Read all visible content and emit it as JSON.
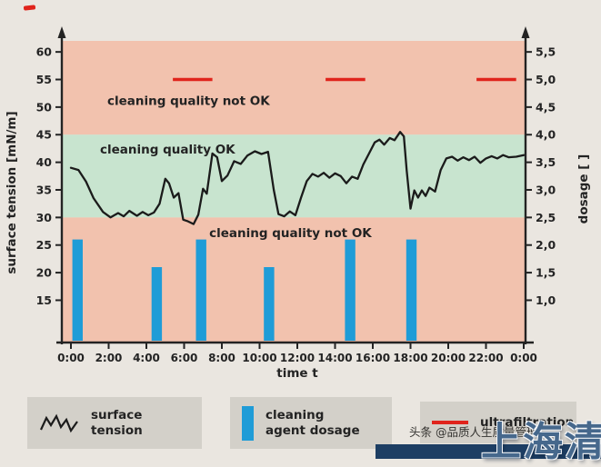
{
  "page": {
    "background": "#eae6e0"
  },
  "legend": {
    "items": [
      {
        "icon": "zigzag-line-icon",
        "label": "surface tension"
      },
      {
        "icon": "blue-bar-icon",
        "label": "cleaning agent dosage"
      },
      {
        "icon": "red-line-icon",
        "label": "ultrafiltration"
      }
    ]
  },
  "watermark": {
    "small_text": "头条 @品质人生质量管理",
    "big_text": "上海清"
  },
  "chart_data": {
    "type": "combo",
    "title": "",
    "x": {
      "label": "time t",
      "ticks": [
        "0:00",
        "2:00",
        "4:00",
        "6:00",
        "8:00",
        "10:00",
        "12:00",
        "14:00",
        "16:00",
        "18:00",
        "20:00",
        "22:00",
        "0:00"
      ],
      "tick_hours": [
        0,
        2,
        4,
        6,
        8,
        10,
        12,
        14,
        16,
        18,
        20,
        22,
        24
      ],
      "range_hours": [
        0,
        24
      ]
    },
    "y_left": {
      "label": "surface tension [mN/m]",
      "ticks": [
        60,
        55,
        50,
        45,
        40,
        35,
        30,
        25,
        20,
        15
      ],
      "range": [
        7.5,
        62
      ]
    },
    "y_right": {
      "label": "dosage [ ]",
      "ticks": [
        "5,5",
        "5,0",
        "4,5",
        "4,0",
        "3,5",
        "3,0",
        "2,5",
        "2,0",
        "1,5",
        "1,0"
      ],
      "range": [
        0.25,
        5.7
      ]
    },
    "zones": [
      {
        "label": "cleaning quality not OK",
        "from": 45,
        "to": 62,
        "color": "#f2c2ae",
        "label_pos": [
          1.93,
          50.4
        ]
      },
      {
        "label": "cleaning quality OK",
        "from": 30,
        "to": 45,
        "color": "#c8e4cf",
        "label_pos": [
          1.54,
          41.6
        ]
      },
      {
        "label": "cleaning quality not OK",
        "from": 7.5,
        "to": 30,
        "color": "#f2c2ae",
        "label_pos": [
          7.33,
          26.4
        ]
      }
    ],
    "series": [
      {
        "name": "surface tension",
        "type": "line",
        "color": "#1b1b1b",
        "points": [
          [
            0,
            39
          ],
          [
            0.4,
            38.6
          ],
          [
            0.8,
            36.5
          ],
          [
            1.2,
            33.5
          ],
          [
            1.7,
            31
          ],
          [
            2.1,
            30
          ],
          [
            2.5,
            30.8
          ],
          [
            2.8,
            30.2
          ],
          [
            3.1,
            31.2
          ],
          [
            3.5,
            30.3
          ],
          [
            3.8,
            31
          ],
          [
            4.1,
            30.4
          ],
          [
            4.4,
            30.9
          ],
          [
            4.7,
            32.5
          ],
          [
            5,
            37
          ],
          [
            5.2,
            36.2
          ],
          [
            5.45,
            33.6
          ],
          [
            5.7,
            34.4
          ],
          [
            5.95,
            29.6
          ],
          [
            6.2,
            29.3
          ],
          [
            6.5,
            28.8
          ],
          [
            6.75,
            30.5
          ],
          [
            7,
            35.2
          ],
          [
            7.2,
            34.3
          ],
          [
            7.5,
            41.6
          ],
          [
            7.75,
            40.9
          ],
          [
            8,
            36.6
          ],
          [
            8.3,
            37.6
          ],
          [
            8.65,
            40.2
          ],
          [
            9,
            39.7
          ],
          [
            9.35,
            41.2
          ],
          [
            9.75,
            42
          ],
          [
            10.1,
            41.5
          ],
          [
            10.45,
            41.9
          ],
          [
            10.75,
            35
          ],
          [
            11,
            30.6
          ],
          [
            11.3,
            30.2
          ],
          [
            11.6,
            31.1
          ],
          [
            11.9,
            30.4
          ],
          [
            12.2,
            33.6
          ],
          [
            12.5,
            36.6
          ],
          [
            12.8,
            37.9
          ],
          [
            13.1,
            37.4
          ],
          [
            13.4,
            38.1
          ],
          [
            13.7,
            37.2
          ],
          [
            14,
            38
          ],
          [
            14.3,
            37.5
          ],
          [
            14.6,
            36.2
          ],
          [
            14.9,
            37.4
          ],
          [
            15.2,
            37
          ],
          [
            15.5,
            39.6
          ],
          [
            15.8,
            41.6
          ],
          [
            16.1,
            43.6
          ],
          [
            16.35,
            44.1
          ],
          [
            16.6,
            43.2
          ],
          [
            16.9,
            44.4
          ],
          [
            17.15,
            44
          ],
          [
            17.45,
            45.5
          ],
          [
            17.65,
            44.7
          ],
          [
            17.8,
            38.5
          ],
          [
            18,
            31.6
          ],
          [
            18.2,
            34.9
          ],
          [
            18.4,
            33.6
          ],
          [
            18.6,
            34.9
          ],
          [
            18.8,
            33.9
          ],
          [
            19,
            35.4
          ],
          [
            19.3,
            34.7
          ],
          [
            19.6,
            38.6
          ],
          [
            19.9,
            40.7
          ],
          [
            20.2,
            41
          ],
          [
            20.5,
            40.3
          ],
          [
            20.8,
            40.9
          ],
          [
            21.1,
            40.4
          ],
          [
            21.4,
            41
          ],
          [
            21.7,
            39.9
          ],
          [
            22,
            40.7
          ],
          [
            22.3,
            41.1
          ],
          [
            22.6,
            40.7
          ],
          [
            22.9,
            41.3
          ],
          [
            23.2,
            40.9
          ],
          [
            23.6,
            41
          ],
          [
            24,
            41.3
          ]
        ]
      },
      {
        "name": "cleaning agent dosage",
        "type": "bar",
        "color": "#1f9cd7",
        "bar_width_hours": 0.55,
        "bars": [
          {
            "t": 0.35,
            "top_mnm": 26
          },
          {
            "t": 4.55,
            "top_mnm": 21
          },
          {
            "t": 6.9,
            "top_mnm": 26
          },
          {
            "t": 10.5,
            "top_mnm": 21
          },
          {
            "t": 14.8,
            "top_mnm": 26
          },
          {
            "t": 18.05,
            "top_mnm": 26
          }
        ]
      },
      {
        "name": "ultrafiltration",
        "type": "segments",
        "color": "#e0241c",
        "y_mnm": 55,
        "segments": [
          [
            5.4,
            7.5
          ],
          [
            13.5,
            15.6
          ],
          [
            21.5,
            23.6
          ]
        ]
      }
    ]
  }
}
